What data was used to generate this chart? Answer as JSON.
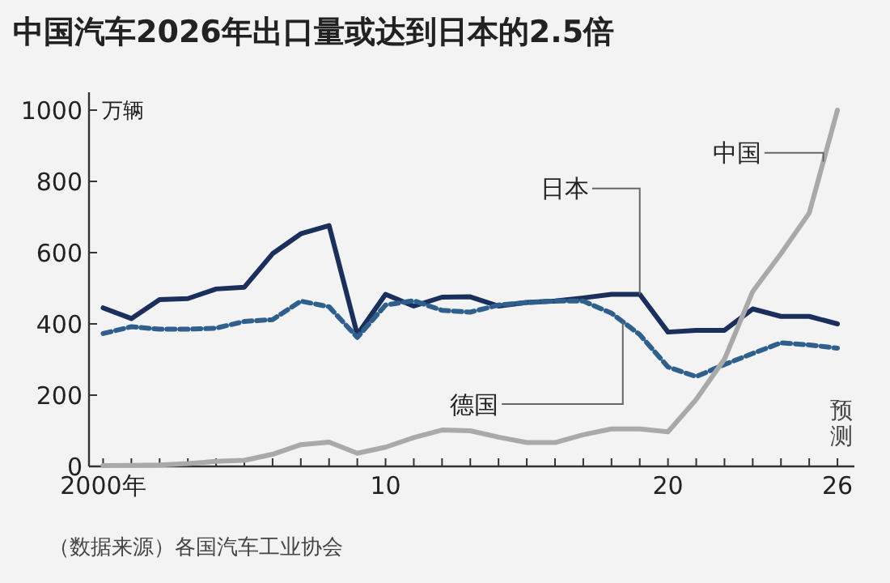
{
  "chart_data": {
    "type": "line",
    "title": "中国汽车2026年出口量或达到日本的2.5倍",
    "ylabel": "万辆",
    "x": [
      2000,
      2001,
      2002,
      2003,
      2004,
      2005,
      2006,
      2007,
      2008,
      2009,
      2010,
      2011,
      2012,
      2013,
      2014,
      2015,
      2016,
      2017,
      2018,
      2019,
      2020,
      2021,
      2022,
      2023,
      2024,
      2025,
      2026
    ],
    "series": [
      {
        "name": "日本",
        "color": "#1b2f5c",
        "line_style": "solid",
        "values": [
          445,
          415,
          468,
          471,
          498,
          503,
          597,
          653,
          676,
          370,
          483,
          450,
          475,
          476,
          450,
          460,
          464,
          473,
          483,
          483,
          377,
          382,
          382,
          442,
          421,
          421,
          400
        ]
      },
      {
        "name": "德国",
        "color": "#2f5f8c",
        "line_style": "dashed",
        "values": [
          373,
          392,
          385,
          385,
          388,
          407,
          412,
          464,
          448,
          362,
          453,
          465,
          438,
          433,
          453,
          460,
          464,
          464,
          430,
          370,
          279,
          252,
          286,
          317,
          347,
          341,
          332
        ]
      },
      {
        "name": "中国",
        "color": "#a9a9a9",
        "line_style": "solid",
        "values": [
          2,
          3,
          4,
          8,
          14,
          17,
          34,
          61,
          68,
          37,
          54,
          81,
          102,
          100,
          82,
          67,
          67,
          89,
          105,
          105,
          97,
          188,
          301,
          491,
          597,
          711,
          1000
        ]
      }
    ],
    "xlim": [
      1999.5,
      2026.6
    ],
    "ylim": [
      0,
      1050
    ],
    "xticks": [
      {
        "value": 2000,
        "label": "2000年"
      },
      {
        "value": 2001,
        "label": null
      },
      {
        "value": 2002,
        "label": null
      },
      {
        "value": 2003,
        "label": null
      },
      {
        "value": 2004,
        "label": null
      },
      {
        "value": 2005,
        "label": null
      },
      {
        "value": 2006,
        "label": null
      },
      {
        "value": 2007,
        "label": null
      },
      {
        "value": 2008,
        "label": null
      },
      {
        "value": 2009,
        "label": null
      },
      {
        "value": 2010,
        "label": "10"
      },
      {
        "value": 2011,
        "label": null
      },
      {
        "value": 2012,
        "label": null
      },
      {
        "value": 2013,
        "label": null
      },
      {
        "value": 2014,
        "label": null
      },
      {
        "value": 2015,
        "label": null
      },
      {
        "value": 2016,
        "label": null
      },
      {
        "value": 2017,
        "label": null
      },
      {
        "value": 2018,
        "label": null
      },
      {
        "value": 2019,
        "label": null
      },
      {
        "value": 2020,
        "label": "20"
      },
      {
        "value": 2021,
        "label": null
      },
      {
        "value": 2022,
        "label": null
      },
      {
        "value": 2023,
        "label": null
      },
      {
        "value": 2024,
        "label": null
      },
      {
        "value": 2025,
        "label": null
      },
      {
        "value": 2026,
        "label": "26"
      }
    ],
    "yticks": [
      0,
      200,
      400,
      600,
      800,
      1000
    ],
    "annotations": [
      "预测",
      "（数据来源）各国汽车工业协会"
    ],
    "grid": false,
    "marker": "none"
  }
}
